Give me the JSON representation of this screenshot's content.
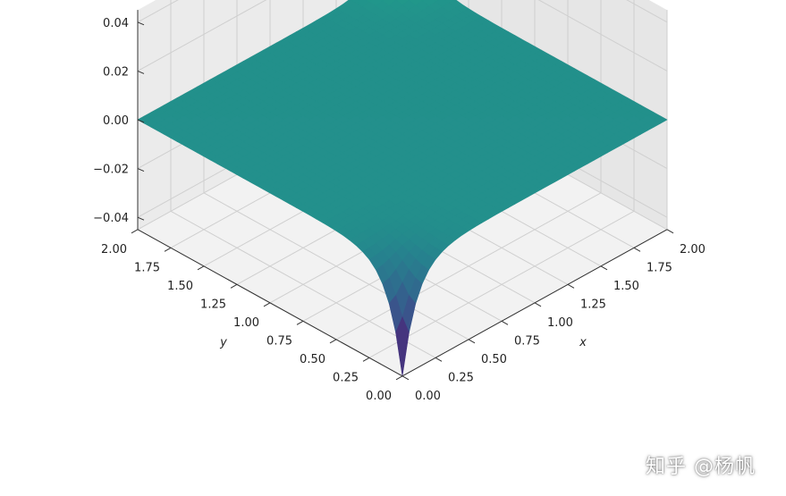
{
  "chart_data": {
    "type": "surface3d",
    "title": "",
    "xlabel": "x",
    "ylabel": "y",
    "zlabel": "",
    "xlim": [
      0,
      2
    ],
    "ylim": [
      0,
      2
    ],
    "zlim": [
      -0.045,
      0.045
    ],
    "x_ticks": [
      "0.00",
      "0.25",
      "0.50",
      "0.75",
      "1.00",
      "1.25",
      "1.50",
      "1.75",
      "2.00"
    ],
    "y_ticks": [
      "0.00",
      "0.25",
      "0.50",
      "0.75",
      "1.00",
      "1.25",
      "1.50",
      "1.75",
      "2.00"
    ],
    "z_ticks": [
      "−0.04",
      "−0.02",
      "0.00",
      "0.02",
      "0.04"
    ],
    "z_tick_values": [
      -0.04,
      -0.02,
      0.0,
      0.02,
      0.04
    ],
    "colormap": "viridis",
    "grid": true,
    "surface": {
      "description_values": "flat surface z≈0 with a sharp positive spike near (x=2, y=2) and a sharp negative spike near (x=0, y=0)",
      "positive_peak": {
        "x": 2.0,
        "y": 2.0,
        "z": 0.045
      },
      "negative_peak": {
        "x": 0.0,
        "y": 0.0,
        "z": -0.045
      }
    }
  },
  "watermark": "知乎 @杨帆"
}
